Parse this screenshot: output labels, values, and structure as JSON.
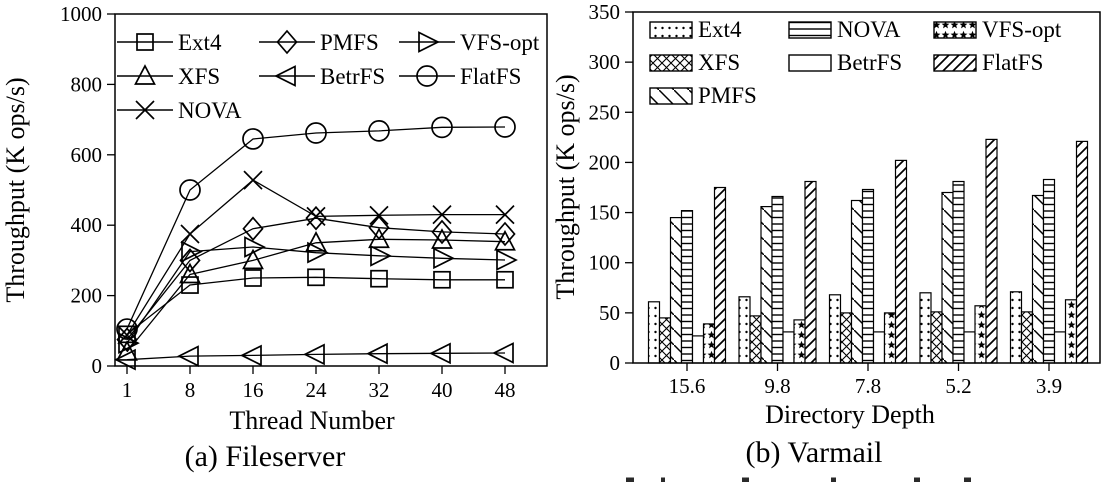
{
  "page": {
    "background_color": "#ffffff",
    "text_color": "#000000"
  },
  "chart_data": [
    {
      "type": "line",
      "panel": "a",
      "title": "(a) Fileserver",
      "xlabel": "Thread Number",
      "ylabel": "Throughput (K ops/s)",
      "x": [
        "1",
        "8",
        "16",
        "24",
        "32",
        "40",
        "48"
      ],
      "ylim": [
        0,
        1000
      ],
      "ytick_step": 200,
      "grid": false,
      "legend_position": "inside-top-left",
      "legend_columns": [
        [
          "Ext4",
          "XFS",
          "NOVA"
        ],
        [
          "PMFS",
          "BetrFS"
        ],
        [
          "VFS-opt",
          "FlatFS"
        ]
      ],
      "series": [
        {
          "name": "Ext4",
          "marker": "square",
          "values": [
            90,
            230,
            250,
            252,
            248,
            245,
            245
          ]
        },
        {
          "name": "XFS",
          "marker": "triangle-up",
          "values": [
            40,
            260,
            300,
            350,
            360,
            358,
            353
          ]
        },
        {
          "name": "NOVA",
          "marker": "x",
          "values": [
            88,
            375,
            528,
            425,
            428,
            430,
            430
          ]
        },
        {
          "name": "PMFS",
          "marker": "diamond",
          "values": [
            75,
            300,
            390,
            420,
            393,
            381,
            375
          ]
        },
        {
          "name": "BetrFS",
          "marker": "triangle-left",
          "values": [
            18,
            28,
            30,
            33,
            35,
            36,
            37
          ]
        },
        {
          "name": "VFS-opt",
          "marker": "triangle-right",
          "values": [
            65,
            325,
            338,
            322,
            313,
            306,
            301
          ]
        },
        {
          "name": "FlatFS",
          "marker": "circle",
          "values": [
            105,
            500,
            645,
            662,
            668,
            678,
            679
          ]
        }
      ]
    },
    {
      "type": "bar",
      "panel": "b",
      "title": "(b) Varmail",
      "xlabel": "Directory Depth",
      "ylabel": "Throughput (K ops/s)",
      "categories": [
        "15.6",
        "9.8",
        "7.8",
        "5.2",
        "3.9"
      ],
      "ylim": [
        0,
        350
      ],
      "ytick_step": 50,
      "grid": false,
      "legend_position": "inside-top-left",
      "legend_columns": [
        [
          "Ext4",
          "XFS",
          "PMFS"
        ],
        [
          "NOVA",
          "BetrFS"
        ],
        [
          "VFS-opt",
          "FlatFS"
        ]
      ],
      "series": [
        {
          "name": "Ext4",
          "pattern": "dots",
          "values": [
            61,
            66,
            68,
            70,
            71
          ]
        },
        {
          "name": "XFS",
          "pattern": "crosshatch",
          "values": [
            45,
            47,
            50,
            51,
            51
          ]
        },
        {
          "name": "PMFS",
          "pattern": "diagonal-down",
          "values": [
            145,
            156,
            162,
            170,
            167
          ]
        },
        {
          "name": "NOVA",
          "pattern": "horizontal-lines",
          "values": [
            152,
            166,
            173,
            181,
            183
          ]
        },
        {
          "name": "BetrFS",
          "pattern": "plain",
          "values": [
            27,
            31,
            31,
            31,
            31
          ]
        },
        {
          "name": "VFS-opt",
          "pattern": "stars",
          "values": [
            39,
            43,
            50,
            57,
            63
          ]
        },
        {
          "name": "FlatFS",
          "pattern": "diagonal-up",
          "values": [
            175,
            181,
            202,
            223,
            221
          ]
        }
      ]
    }
  ]
}
